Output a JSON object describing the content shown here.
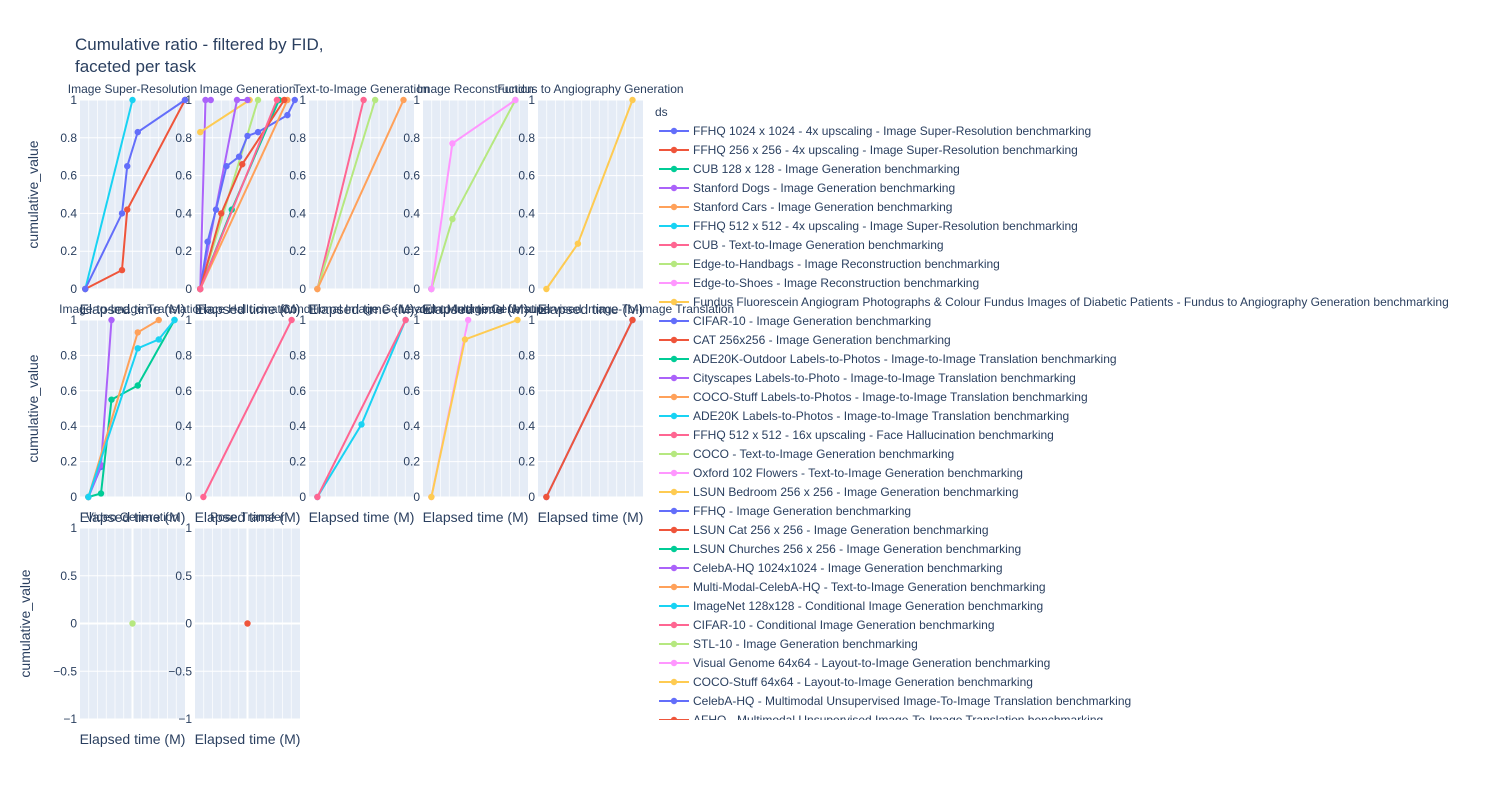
{
  "title_line1": "Cumulative ratio - filtered by FID,",
  "title_line2": "faceted per task",
  "xlabel": "Elapsed time (M)",
  "ylabel": "cumulative_value",
  "legend_title": "ds",
  "chart_data": {
    "type": "line",
    "title": "Cumulative ratio - filtered by FID, faceted per task",
    "xlabel": "Elapsed time (M)",
    "ylabel": "cumulative_value",
    "grid": true,
    "legend_position": "right",
    "legend": [
      {
        "name": "FFHQ 1024 x 1024 - 4x upscaling - Image Super-Resolution benchmarking",
        "color": "#636efa"
      },
      {
        "name": "FFHQ 256 x 256 - 4x upscaling - Image Super-Resolution benchmarking",
        "color": "#EF553B"
      },
      {
        "name": "CUB 128 x 128 - Image Generation benchmarking",
        "color": "#00cc96"
      },
      {
        "name": "Stanford Dogs - Image Generation benchmarking",
        "color": "#ab63fa"
      },
      {
        "name": "Stanford Cars - Image Generation benchmarking",
        "color": "#FFA15A"
      },
      {
        "name": "FFHQ 512 x 512 - 4x upscaling - Image Super-Resolution benchmarking",
        "color": "#19d3f3"
      },
      {
        "name": "CUB - Text-to-Image Generation benchmarking",
        "color": "#FF6692"
      },
      {
        "name": "Edge-to-Handbags - Image Reconstruction benchmarking",
        "color": "#B6E880"
      },
      {
        "name": "Edge-to-Shoes - Image Reconstruction benchmarking",
        "color": "#FF97FF"
      },
      {
        "name": "Fundus Fluorescein Angiogram Photographs & Colour Fundus Images of Diabetic Patients - Fundus to Angiography Generation benchmarking",
        "color": "#FECB52"
      },
      {
        "name": "CIFAR-10 - Image Generation benchmarking",
        "color": "#636efa"
      },
      {
        "name": "CAT 256x256 - Image Generation benchmarking",
        "color": "#EF553B"
      },
      {
        "name": "ADE20K-Outdoor Labels-to-Photos - Image-to-Image Translation benchmarking",
        "color": "#00cc96"
      },
      {
        "name": "Cityscapes Labels-to-Photo - Image-to-Image Translation benchmarking",
        "color": "#ab63fa"
      },
      {
        "name": "COCO-Stuff Labels-to-Photos - Image-to-Image Translation benchmarking",
        "color": "#FFA15A"
      },
      {
        "name": "ADE20K Labels-to-Photos - Image-to-Image Translation benchmarking",
        "color": "#19d3f3"
      },
      {
        "name": "FFHQ 512 x 512 - 16x upscaling - Face Hallucination benchmarking",
        "color": "#FF6692"
      },
      {
        "name": "COCO - Text-to-Image Generation benchmarking",
        "color": "#B6E880"
      },
      {
        "name": "Oxford 102 Flowers - Text-to-Image Generation benchmarking",
        "color": "#FF97FF"
      },
      {
        "name": "LSUN Bedroom 256 x 256 - Image Generation benchmarking",
        "color": "#FECB52"
      },
      {
        "name": "FFHQ - Image Generation benchmarking",
        "color": "#636efa"
      },
      {
        "name": "LSUN Cat 256 x 256 - Image Generation benchmarking",
        "color": "#EF553B"
      },
      {
        "name": "LSUN Churches 256 x 256 - Image Generation benchmarking",
        "color": "#00cc96"
      },
      {
        "name": "CelebA-HQ 1024x1024 - Image Generation benchmarking",
        "color": "#ab63fa"
      },
      {
        "name": "Multi-Modal-CelebA-HQ - Text-to-Image Generation benchmarking",
        "color": "#FFA15A"
      },
      {
        "name": "ImageNet 128x128 - Conditional Image Generation benchmarking",
        "color": "#19d3f3"
      },
      {
        "name": "CIFAR-10 - Conditional Image Generation benchmarking",
        "color": "#FF6692"
      },
      {
        "name": "STL-10 - Image Generation benchmarking",
        "color": "#B6E880"
      },
      {
        "name": "Visual Genome 64x64 - Layout-to-Image Generation benchmarking",
        "color": "#FF97FF"
      },
      {
        "name": "COCO-Stuff 64x64 - Layout-to-Image Generation benchmarking",
        "color": "#FECB52"
      },
      {
        "name": "CelebA-HQ - Multimodal Unsupervised Image-To-Image Translation benchmarking",
        "color": "#636efa"
      },
      {
        "name": "AFHQ - Multimodal Unsupervised Image-To-Image Translation benchmarking",
        "color": "#EF553B"
      }
    ],
    "panels": [
      {
        "title": "Image Super-Resolution",
        "ylim": [
          0,
          1
        ],
        "series": [
          {
            "color": "#19d3f3",
            "x": [
              0.05,
              0.5
            ],
            "y": [
              0,
              1
            ]
          },
          {
            "color": "#EF553B",
            "x": [
              0.05,
              0.4,
              0.45,
              1.0
            ],
            "y": [
              0,
              0.1,
              0.42,
              1
            ]
          },
          {
            "color": "#636efa",
            "x": [
              0.05,
              0.4,
              0.45,
              0.55,
              1.0
            ],
            "y": [
              0,
              0.4,
              0.65,
              0.83,
              1
            ]
          }
        ]
      },
      {
        "title": "Image Generation",
        "ylim": [
          0,
          1
        ],
        "series": [
          {
            "color": "#ab63fa",
            "x": [
              0.05,
              0.1,
              0.15
            ],
            "y": [
              0,
              1,
              1
            ]
          },
          {
            "color": "#FECB52",
            "x": [
              0.05,
              0.52
            ],
            "y": [
              0.83,
              1
            ]
          },
          {
            "color": "#B6E880",
            "x": [
              0.05,
              0.6
            ],
            "y": [
              0,
              1
            ]
          },
          {
            "color": "#ab63fa",
            "x": [
              0.05,
              0.4,
              0.5
            ],
            "y": [
              0,
              1,
              1
            ]
          },
          {
            "color": "#00cc96",
            "x": [
              0.05,
              0.35,
              0.8
            ],
            "y": [
              0,
              0.42,
              1
            ]
          },
          {
            "color": "#636efa",
            "x": [
              0.05,
              0.12,
              0.2,
              0.3,
              0.42,
              0.5,
              0.6,
              0.88,
              0.95
            ],
            "y": [
              0,
              0.25,
              0.42,
              0.65,
              0.7,
              0.81,
              0.83,
              0.92,
              1
            ]
          },
          {
            "color": "#FFA15A",
            "x": [
              0.05,
              0.88
            ],
            "y": [
              0,
              1
            ]
          },
          {
            "color": "#EF553B",
            "x": [
              0.05,
              0.25,
              0.45,
              0.85
            ],
            "y": [
              0,
              0.4,
              0.66,
              1
            ]
          },
          {
            "color": "#FF6692",
            "x": [
              0.05,
              0.78
            ],
            "y": [
              0,
              1
            ]
          }
        ]
      },
      {
        "title": "Text-to-Image Generation",
        "ylim": [
          0,
          1
        ],
        "series": [
          {
            "color": "#FF6692",
            "x": [
              0.08,
              0.52
            ],
            "y": [
              0,
              1
            ]
          },
          {
            "color": "#B6E880",
            "x": [
              0.08,
              0.63
            ],
            "y": [
              0,
              1
            ]
          },
          {
            "color": "#FFA15A",
            "x": [
              0.08,
              0.9
            ],
            "y": [
              0,
              1
            ]
          }
        ]
      },
      {
        "title": "Image Reconstruction",
        "ylim": [
          0,
          1
        ],
        "series": [
          {
            "color": "#636efa",
            "x": [
              0.08
            ],
            "y": [
              0
            ]
          },
          {
            "color": "#B6E880",
            "x": [
              0.08,
              0.28,
              0.88
            ],
            "y": [
              0,
              0.37,
              1
            ]
          },
          {
            "color": "#FF97FF",
            "x": [
              0.08,
              0.28,
              0.88
            ],
            "y": [
              0,
              0.77,
              1
            ]
          }
        ]
      },
      {
        "title": "Fundus to Angiography Generation",
        "ylim": [
          0,
          1
        ],
        "series": [
          {
            "color": "#FECB52",
            "x": [
              0.08,
              0.38,
              0.9
            ],
            "y": [
              0,
              0.24,
              1
            ]
          }
        ]
      },
      {
        "title": "Image-to-Image Translation",
        "ylim": [
          0,
          1
        ],
        "series": [
          {
            "color": "#636efa",
            "x": [
              0.08,
              0.2
            ],
            "y": [
              0,
              0.17
            ]
          },
          {
            "color": "#ab63fa",
            "x": [
              0.08,
              0.2,
              0.3
            ],
            "y": [
              0,
              0.18,
              1
            ]
          },
          {
            "color": "#00cc96",
            "x": [
              0.08,
              0.2,
              0.3,
              0.55,
              0.9
            ],
            "y": [
              0,
              0.02,
              0.55,
              0.63,
              1
            ]
          },
          {
            "color": "#FFA15A",
            "x": [
              0.08,
              0.55,
              0.75
            ],
            "y": [
              0,
              0.93,
              1
            ]
          },
          {
            "color": "#19d3f3",
            "x": [
              0.08,
              0.55,
              0.75,
              0.9
            ],
            "y": [
              0,
              0.84,
              0.89,
              1
            ]
          }
        ]
      },
      {
        "title": "Face Hallucination",
        "ylim": [
          0,
          1
        ],
        "series": [
          {
            "color": "#FF6692",
            "x": [
              0.08,
              0.92
            ],
            "y": [
              0,
              1
            ]
          }
        ]
      },
      {
        "title": "Conditional Image Generation",
        "ylim": [
          0,
          1
        ],
        "series": [
          {
            "color": "#19d3f3",
            "x": [
              0.08,
              0.5,
              0.92
            ],
            "y": [
              0,
              0.41,
              1
            ]
          },
          {
            "color": "#FF6692",
            "x": [
              0.08,
              0.92
            ],
            "y": [
              0,
              1
            ]
          }
        ]
      },
      {
        "title": "Layout-to-Image Generation",
        "ylim": [
          0,
          1
        ],
        "series": [
          {
            "color": "#FF97FF",
            "x": [
              0.08,
              0.43
            ],
            "y": [
              0,
              1
            ]
          },
          {
            "color": "#FECB52",
            "x": [
              0.08,
              0.4,
              0.9
            ],
            "y": [
              0,
              0.89,
              1
            ]
          }
        ]
      },
      {
        "title": "Multimodal Unsupervised Image-To-Image Translation",
        "ylim": [
          0,
          1
        ],
        "series": [
          {
            "color": "#636efa",
            "x": [
              0.08,
              0.9
            ],
            "y": [
              0,
              1
            ]
          },
          {
            "color": "#EF553B",
            "x": [
              0.08,
              0.9
            ],
            "y": [
              0,
              1
            ]
          }
        ]
      },
      {
        "title": "Video Generation",
        "ylim": [
          -1,
          1
        ],
        "series": [
          {
            "color": "#B6E880",
            "x": [
              0.5
            ],
            "y": [
              0
            ]
          }
        ]
      },
      {
        "title": "Pose Transfer",
        "ylim": [
          -1,
          1
        ],
        "series": [
          {
            "color": "#EF553B",
            "x": [
              0.5
            ],
            "y": [
              0
            ]
          }
        ]
      }
    ]
  }
}
